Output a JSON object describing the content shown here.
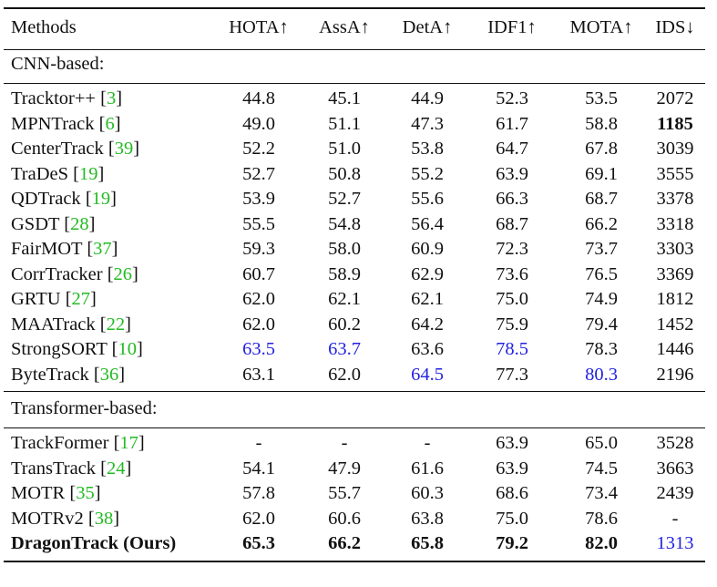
{
  "header": [
    "Methods",
    "HOTA↑",
    "AssA↑",
    "DetA↑",
    "IDF1↑",
    "MOTA↑",
    "IDS↓"
  ],
  "sections": [
    {
      "title": "CNN-based:",
      "rows": [
        {
          "name": "Tracktor++",
          "ref": "3",
          "vals": [
            "44.8",
            "45.1",
            "44.9",
            "52.3",
            "53.5",
            "2072"
          ],
          "bold": [],
          "blue": []
        },
        {
          "name": "MPNTrack",
          "ref": "6",
          "vals": [
            "49.0",
            "51.1",
            "47.3",
            "61.7",
            "58.8",
            "1185"
          ],
          "bold": [
            5
          ],
          "blue": []
        },
        {
          "name": "CenterTrack",
          "ref": "39",
          "vals": [
            "52.2",
            "51.0",
            "53.8",
            "64.7",
            "67.8",
            "3039"
          ],
          "bold": [],
          "blue": []
        },
        {
          "name": "TraDeS",
          "ref": "19",
          "vals": [
            "52.7",
            "50.8",
            "55.2",
            "63.9",
            "69.1",
            "3555"
          ],
          "bold": [],
          "blue": []
        },
        {
          "name": "QDTrack",
          "ref": "19",
          "vals": [
            "53.9",
            "52.7",
            "55.6",
            "66.3",
            "68.7",
            "3378"
          ],
          "bold": [],
          "blue": []
        },
        {
          "name": "GSDT",
          "ref": "28",
          "vals": [
            "55.5",
            "54.8",
            "56.4",
            "68.7",
            "66.2",
            "3318"
          ],
          "bold": [],
          "blue": []
        },
        {
          "name": "FairMOT",
          "ref": "37",
          "vals": [
            "59.3",
            "58.0",
            "60.9",
            "72.3",
            "73.7",
            "3303"
          ],
          "bold": [],
          "blue": []
        },
        {
          "name": "CorrTracker",
          "ref": "26",
          "vals": [
            "60.7",
            "58.9",
            "62.9",
            "73.6",
            "76.5",
            "3369"
          ],
          "bold": [],
          "blue": []
        },
        {
          "name": "GRTU",
          "ref": "27",
          "vals": [
            "62.0",
            "62.1",
            "62.1",
            "75.0",
            "74.9",
            "1812"
          ],
          "bold": [],
          "blue": []
        },
        {
          "name": "MAATrack",
          "ref": "22",
          "vals": [
            "62.0",
            "60.2",
            "64.2",
            "75.9",
            "79.4",
            "1452"
          ],
          "bold": [],
          "blue": []
        },
        {
          "name": "StrongSORT",
          "ref": "10",
          "vals": [
            "63.5",
            "63.7",
            "63.6",
            "78.5",
            "78.3",
            "1446"
          ],
          "bold": [],
          "blue": [
            0,
            1,
            3
          ]
        },
        {
          "name": "ByteTrack",
          "ref": "36",
          "vals": [
            "63.1",
            "62.0",
            "64.5",
            "77.3",
            "80.3",
            "2196"
          ],
          "bold": [],
          "blue": [
            2,
            4
          ]
        }
      ]
    },
    {
      "title": "Transformer-based:",
      "rows": [
        {
          "name": "TrackFormer",
          "ref": "17",
          "vals": [
            "-",
            "-",
            "-",
            "63.9",
            "65.0",
            "3528"
          ],
          "bold": [],
          "blue": []
        },
        {
          "name": "TransTrack",
          "ref": "24",
          "vals": [
            "54.1",
            "47.9",
            "61.6",
            "63.9",
            "74.5",
            "3663"
          ],
          "bold": [],
          "blue": []
        },
        {
          "name": "MOTR",
          "ref": "35",
          "vals": [
            "57.8",
            "55.7",
            "60.3",
            "68.6",
            "73.4",
            "2439"
          ],
          "bold": [],
          "blue": []
        },
        {
          "name": "MOTRv2",
          "ref": "38",
          "vals": [
            "62.0",
            "60.6",
            "63.8",
            "75.0",
            "78.6",
            "-"
          ],
          "bold": [],
          "blue": []
        },
        {
          "name": "DragonTrack (Ours)",
          "ref": "",
          "vals": [
            "65.3",
            "66.2",
            "65.8",
            "79.2",
            "82.0",
            "1313"
          ],
          "bold": [
            0,
            1,
            2,
            3,
            4
          ],
          "blue": [
            5
          ],
          "boldName": true
        }
      ]
    }
  ],
  "colors": {
    "best": "#111111",
    "second": "#2222e0",
    "citation": "#22bb22"
  }
}
